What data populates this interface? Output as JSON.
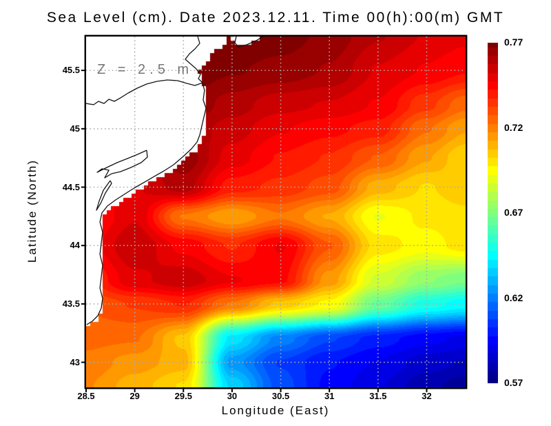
{
  "title": "Sea Level (cm). Date 2023.12.11. Time 00(h):00(m) GMT",
  "annotation": "Z = 2.5 m",
  "axes": {
    "x_label": "Longitude (East)",
    "y_label": "Latitude (North)",
    "x_ticks": [
      {
        "label": "28.5",
        "value": 28.5
      },
      {
        "label": "29",
        "value": 29.0
      },
      {
        "label": "29.5",
        "value": 29.5
      },
      {
        "label": "30",
        "value": 30.0
      },
      {
        "label": "30.5",
        "value": 30.5
      },
      {
        "label": "31",
        "value": 31.0
      },
      {
        "label": "31.5",
        "value": 31.5
      },
      {
        "label": "32",
        "value": 32.0
      }
    ],
    "y_ticks": [
      {
        "label": "45.5",
        "value": 45.5
      },
      {
        "label": "45",
        "value": 45.0
      },
      {
        "label": "44.5",
        "value": 44.5
      },
      {
        "label": "44",
        "value": 44.0
      },
      {
        "label": "43.5",
        "value": 43.5
      },
      {
        "label": "43",
        "value": 43.0
      }
    ],
    "grid_on": true
  },
  "colorbar": {
    "ticks": [
      {
        "label": "0.77",
        "value": 0.77
      },
      {
        "label": "0.72",
        "value": 0.72
      },
      {
        "label": "0.67",
        "value": 0.67
      },
      {
        "label": "0.62",
        "value": 0.62
      },
      {
        "label": "0.57",
        "value": 0.57
      }
    ]
  },
  "colors": {
    "background": "#ffffff",
    "land": "#ffffff",
    "coastline": "#141414",
    "gridline": "#ababab",
    "frame": "#000000",
    "annotation_text": "#767676"
  },
  "chart_data": {
    "type": "heatmap",
    "title": "Sea Level (cm). Date 2023.12.11. Time 00(h):00(m) GMT",
    "xlabel": "Longitude (East)",
    "ylabel": "Latitude (North)",
    "x_range": [
      28.5,
      32.4
    ],
    "y_range": [
      42.785,
      45.79
    ],
    "value_range": [
      0.57,
      0.77
    ],
    "colormap": "jet",
    "contour_step": 0.005,
    "legend_position": "right-colorbar",
    "grid": {
      "lon": [
        28.5,
        29.0,
        29.5,
        30.0,
        30.5,
        31.0,
        31.5,
        32.0,
        32.4
      ],
      "lat": [
        45.8,
        45.5,
        45.2,
        45.0,
        44.75,
        44.5,
        44.25,
        44.0,
        43.7,
        43.5,
        43.2,
        43.0,
        42.8
      ],
      "values": [
        [
          0.77,
          0.77,
          0.771,
          0.772,
          0.77,
          0.766,
          0.758,
          0.752,
          0.749
        ],
        [
          0.77,
          0.77,
          0.772,
          0.768,
          0.766,
          0.762,
          0.752,
          0.747,
          0.743
        ],
        [
          0.766,
          0.766,
          0.768,
          0.76,
          0.754,
          0.752,
          0.747,
          0.734,
          0.724
        ],
        [
          0.758,
          0.759,
          0.762,
          0.755,
          0.748,
          0.744,
          0.74,
          0.723,
          0.713
        ],
        [
          0.752,
          0.754,
          0.766,
          0.75,
          0.742,
          0.737,
          0.727,
          0.713,
          0.703
        ],
        [
          0.742,
          0.752,
          0.76,
          0.74,
          0.736,
          0.73,
          0.71,
          0.702,
          0.706
        ],
        [
          0.74,
          0.752,
          0.722,
          0.713,
          0.722,
          0.712,
          0.692,
          0.699,
          0.701
        ],
        [
          0.745,
          0.757,
          0.746,
          0.737,
          0.748,
          0.728,
          0.7,
          0.695,
          0.7
        ],
        [
          0.736,
          0.751,
          0.756,
          0.748,
          0.744,
          0.715,
          0.686,
          0.673,
          0.668
        ],
        [
          0.728,
          0.733,
          0.738,
          0.722,
          0.706,
          0.696,
          0.666,
          0.65,
          0.645
        ],
        [
          0.724,
          0.723,
          0.706,
          0.64,
          0.62,
          0.608,
          0.6,
          0.594,
          0.591
        ],
        [
          0.721,
          0.715,
          0.71,
          0.625,
          0.607,
          0.598,
          0.592,
          0.585,
          0.582
        ],
        [
          0.718,
          0.71,
          0.702,
          0.636,
          0.61,
          0.596,
          0.588,
          0.579,
          0.575
        ]
      ]
    },
    "land_masks": [
      [
        [
          28.5,
          45.79
        ],
        [
          29.972,
          45.79
        ],
        [
          29.93,
          45.737
        ],
        [
          29.866,
          45.69
        ],
        [
          29.802,
          45.637
        ],
        [
          29.739,
          45.583
        ],
        [
          29.696,
          45.536
        ],
        [
          29.661,
          45.489
        ],
        [
          29.703,
          45.454
        ],
        [
          29.675,
          45.412
        ],
        [
          29.717,
          45.371
        ],
        [
          29.732,
          45.3
        ],
        [
          29.717,
          45.217
        ],
        [
          29.746,
          45.147
        ],
        [
          29.732,
          45.064
        ],
        [
          29.717,
          44.981
        ],
        [
          29.696,
          44.899
        ],
        [
          29.654,
          44.84
        ],
        [
          29.59,
          44.786
        ],
        [
          29.498,
          44.722
        ],
        [
          29.399,
          44.651
        ],
        [
          29.314,
          44.604
        ],
        [
          29.229,
          44.568
        ],
        [
          29.13,
          44.521
        ],
        [
          29.031,
          44.468
        ],
        [
          28.932,
          44.415
        ],
        [
          28.833,
          44.361
        ],
        [
          28.734,
          44.314
        ],
        [
          28.677,
          44.255
        ],
        [
          28.656,
          44.178
        ],
        [
          28.684,
          44.09
        ],
        [
          28.67,
          43.995
        ],
        [
          28.656,
          43.901
        ],
        [
          28.684,
          43.806
        ],
        [
          28.67,
          43.706
        ],
        [
          28.656,
          43.612
        ],
        [
          28.684,
          43.523
        ],
        [
          28.67,
          43.44
        ],
        [
          28.634,
          43.381
        ],
        [
          28.578,
          43.34
        ],
        [
          28.521,
          43.31
        ],
        [
          28.5,
          43.299
        ]
      ],
      [
        [
          30.008,
          45.79
        ],
        [
          30.333,
          45.79
        ],
        [
          30.234,
          45.743
        ],
        [
          30.114,
          45.701
        ],
        [
          30.036,
          45.713
        ],
        [
          29.993,
          45.76
        ]
      ]
    ],
    "coastlines": [
      [
        [
          29.647,
          45.79
        ],
        [
          29.668,
          45.731
        ],
        [
          29.618,
          45.684
        ],
        [
          29.562,
          45.642
        ],
        [
          29.519,
          45.595
        ],
        [
          29.576,
          45.554
        ],
        [
          29.632,
          45.513
        ],
        [
          29.675,
          45.465
        ],
        [
          29.654,
          45.43
        ],
        [
          29.696,
          45.394
        ]
      ],
      [
        [
          29.696,
          45.394
        ],
        [
          29.618,
          45.371
        ],
        [
          29.533,
          45.389
        ],
        [
          29.441,
          45.412
        ],
        [
          29.335,
          45.418
        ],
        [
          29.229,
          45.406
        ],
        [
          29.123,
          45.383
        ],
        [
          29.024,
          45.347
        ],
        [
          28.932,
          45.306
        ],
        [
          28.854,
          45.265
        ],
        [
          28.79,
          45.235
        ],
        [
          28.734,
          45.253
        ],
        [
          28.684,
          45.217
        ],
        [
          28.627,
          45.235
        ],
        [
          28.578,
          45.206
        ],
        [
          28.5,
          45.217
        ]
      ],
      [
        [
          29.696,
          45.394
        ],
        [
          29.717,
          45.33
        ],
        [
          29.703,
          45.247
        ],
        [
          29.732,
          45.176
        ],
        [
          29.71,
          45.099
        ],
        [
          29.689,
          45.023
        ],
        [
          29.668,
          44.946
        ],
        [
          29.64,
          44.887
        ],
        [
          29.583,
          44.828
        ],
        [
          29.498,
          44.763
        ],
        [
          29.399,
          44.692
        ],
        [
          29.3,
          44.639
        ],
        [
          29.201,
          44.592
        ],
        [
          29.102,
          44.544
        ],
        [
          29.003,
          44.497
        ],
        [
          28.903,
          44.444
        ],
        [
          28.804,
          44.391
        ],
        [
          28.719,
          44.338
        ],
        [
          28.663,
          44.279
        ],
        [
          28.642,
          44.202
        ],
        [
          28.67,
          44.114
        ],
        [
          28.656,
          44.019
        ],
        [
          28.642,
          43.925
        ],
        [
          28.67,
          43.83
        ],
        [
          28.656,
          43.73
        ],
        [
          28.642,
          43.635
        ],
        [
          28.67,
          43.547
        ],
        [
          28.656,
          43.464
        ],
        [
          28.62,
          43.399
        ],
        [
          28.564,
          43.352
        ],
        [
          28.507,
          43.323
        ]
      ],
      [
        [
          30.319,
          45.79
        ],
        [
          30.248,
          45.755
        ],
        [
          30.149,
          45.719
        ],
        [
          30.064,
          45.701
        ],
        [
          30.029,
          45.737
        ],
        [
          30.043,
          45.79
        ]
      ],
      [
        [
          29.123,
          44.816
        ],
        [
          29.031,
          44.781
        ],
        [
          28.925,
          44.745
        ],
        [
          28.819,
          44.71
        ],
        [
          28.712,
          44.668
        ],
        [
          28.613,
          44.627
        ],
        [
          28.663,
          44.657
        ],
        [
          28.734,
          44.645
        ],
        [
          28.691,
          44.58
        ],
        [
          28.762,
          44.615
        ],
        [
          28.854,
          44.633
        ],
        [
          28.96,
          44.668
        ],
        [
          29.066,
          44.71
        ],
        [
          29.13,
          44.757
        ],
        [
          29.123,
          44.816
        ]
      ],
      [
        [
          28.748,
          44.556
        ],
        [
          28.677,
          44.473
        ],
        [
          28.634,
          44.379
        ],
        [
          28.606,
          44.302
        ],
        [
          28.649,
          44.361
        ],
        [
          28.698,
          44.45
        ],
        [
          28.762,
          44.532
        ],
        [
          28.748,
          44.556
        ]
      ]
    ]
  }
}
